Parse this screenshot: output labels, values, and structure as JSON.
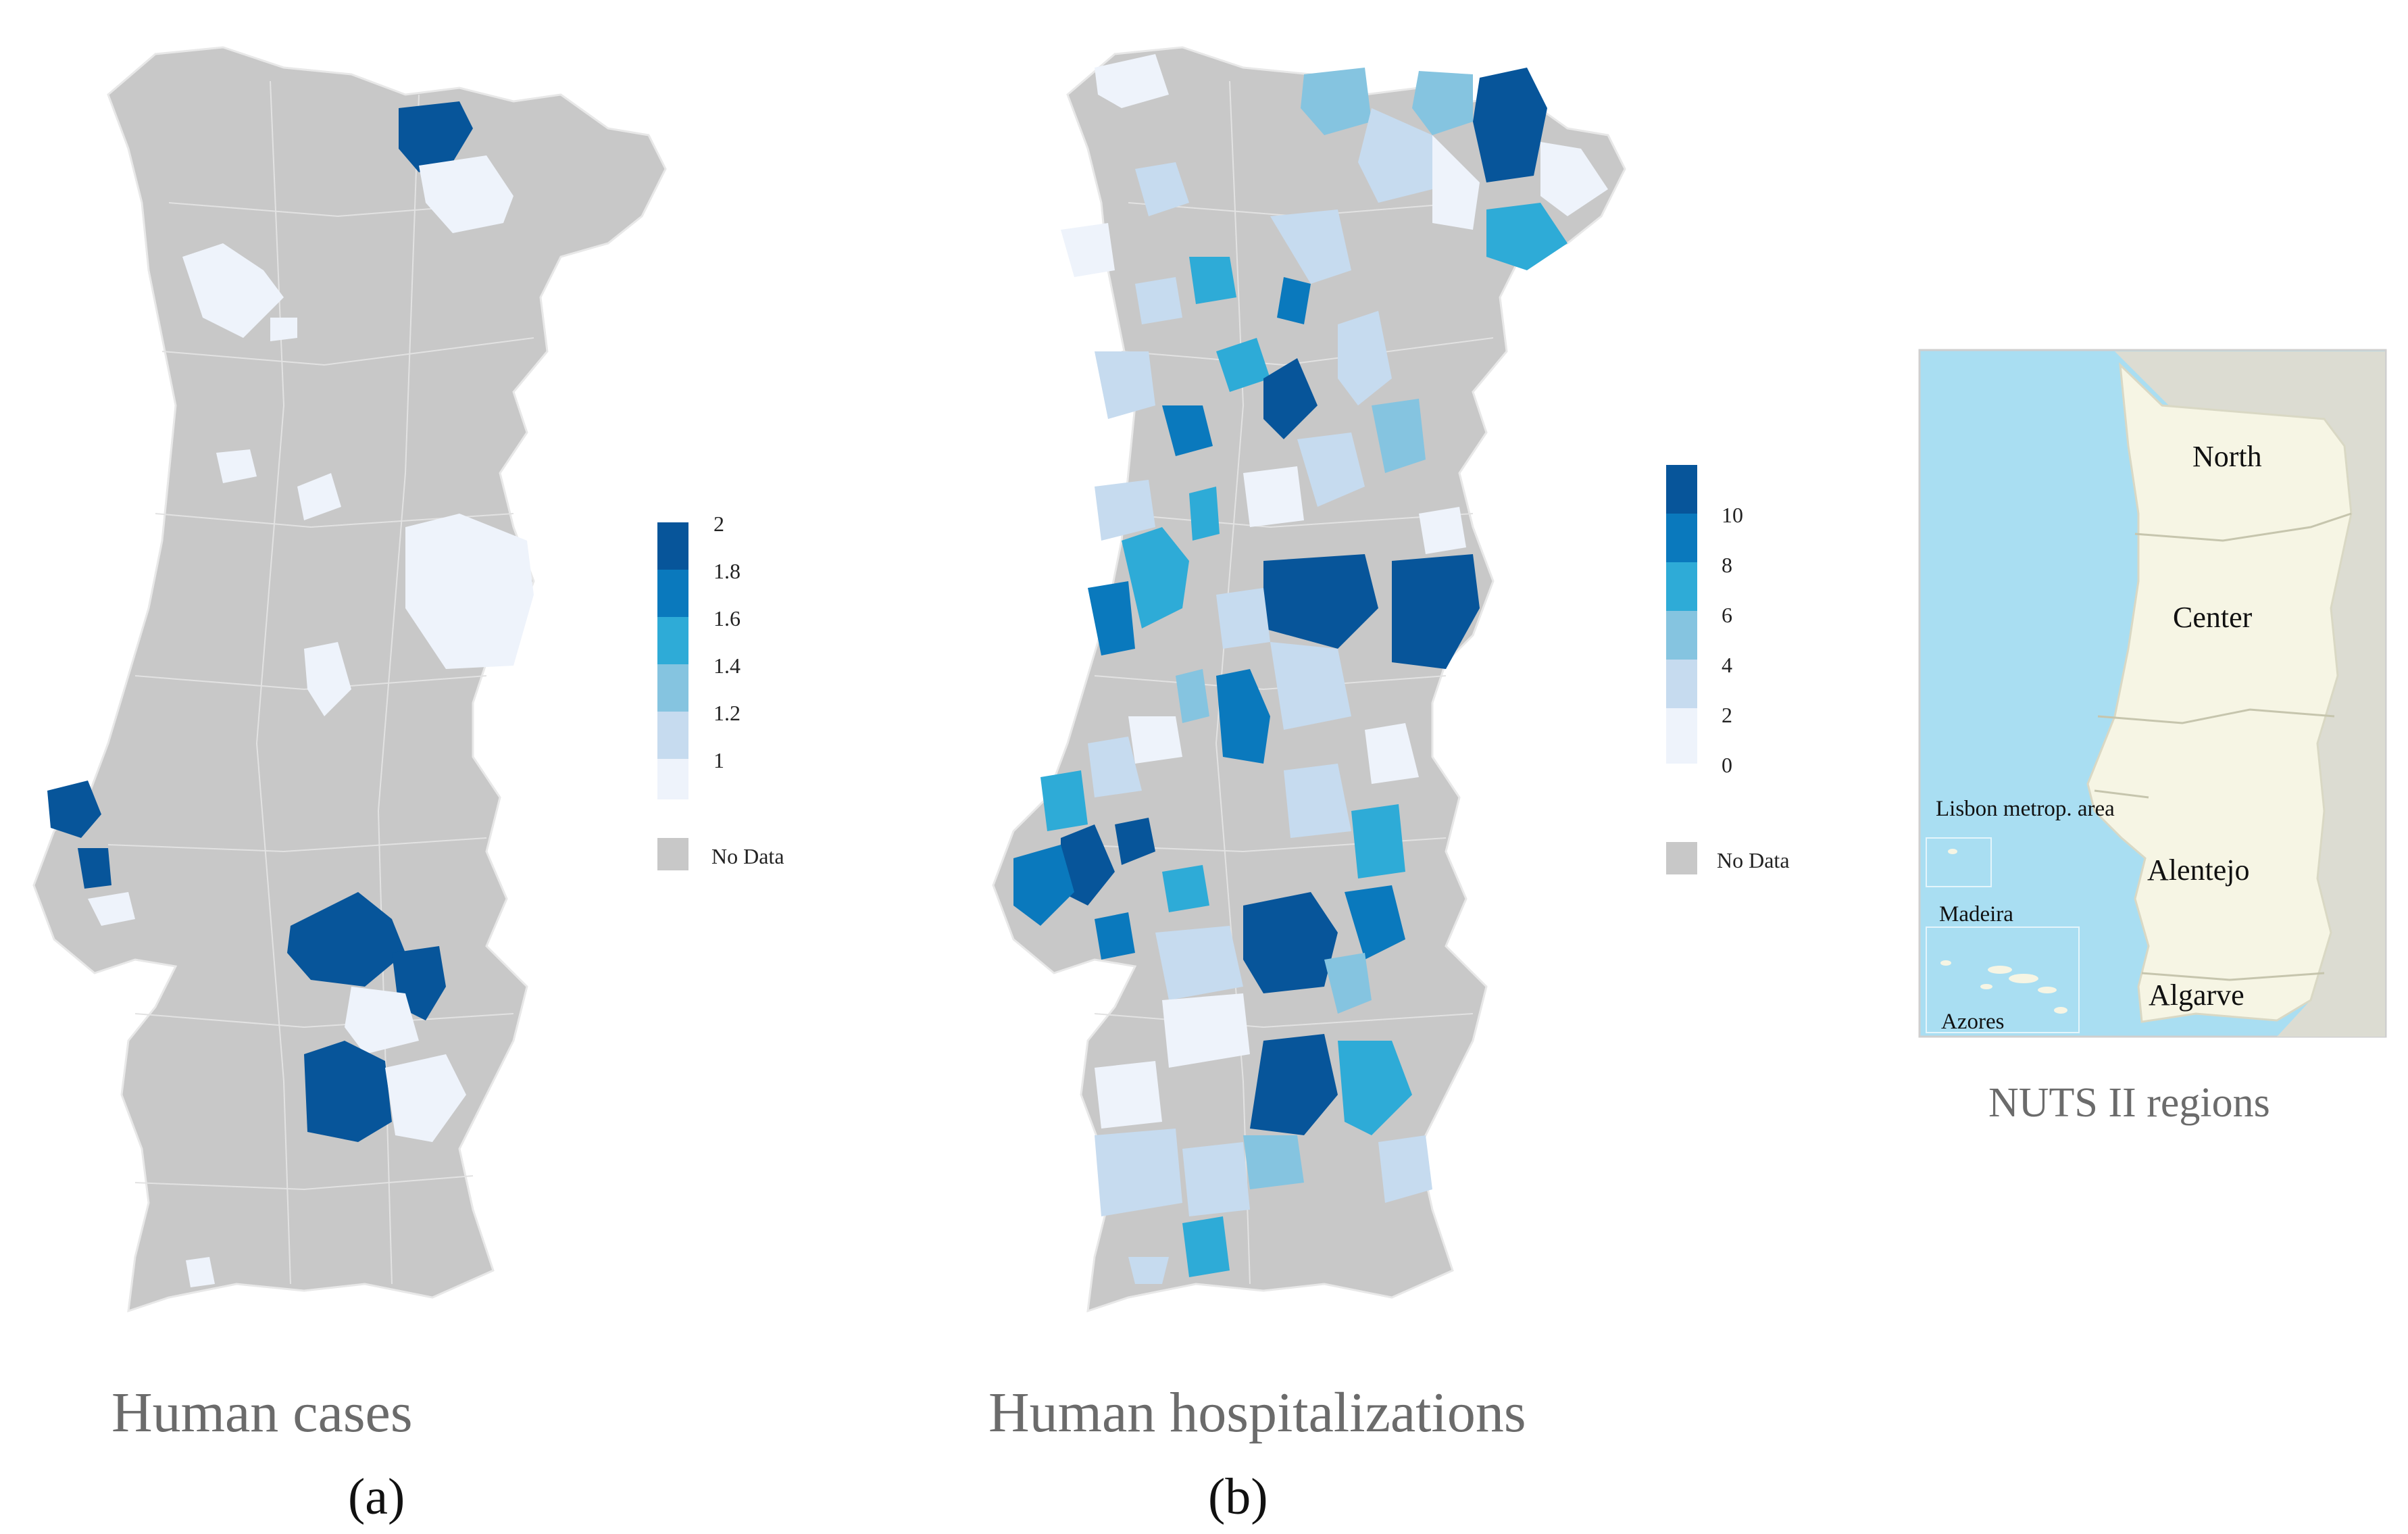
{
  "colors": {
    "no_data": "#c8c8c8",
    "scale": [
      "#eef3fb",
      "#c6dbef",
      "#85c4e0",
      "#2eabd7",
      "#0a79bd",
      "#07559a"
    ],
    "sea": "#a9def2",
    "land_nuts": "#f6f5e4",
    "border": "#ffffff"
  },
  "panels": {
    "a": {
      "caption": "Human cases",
      "letter": "(a)",
      "legend": {
        "ticks": [
          "2",
          "1.8",
          "1.6",
          "1.4",
          "1.2",
          "1"
        ],
        "no_data_label": "No Data"
      }
    },
    "b": {
      "caption": "Human hospitalizations",
      "letter": "(b)",
      "legend": {
        "ticks": [
          "10",
          "8",
          "6",
          "4",
          "2",
          "0"
        ],
        "no_data_label": "No Data"
      }
    }
  },
  "nuts_map": {
    "caption": "NUTS II regions",
    "regions": [
      "North",
      "Center",
      "Lisbon metrop. area",
      "Alentejo",
      "Algarve"
    ],
    "islands": [
      "Madeira",
      "Azores"
    ]
  }
}
